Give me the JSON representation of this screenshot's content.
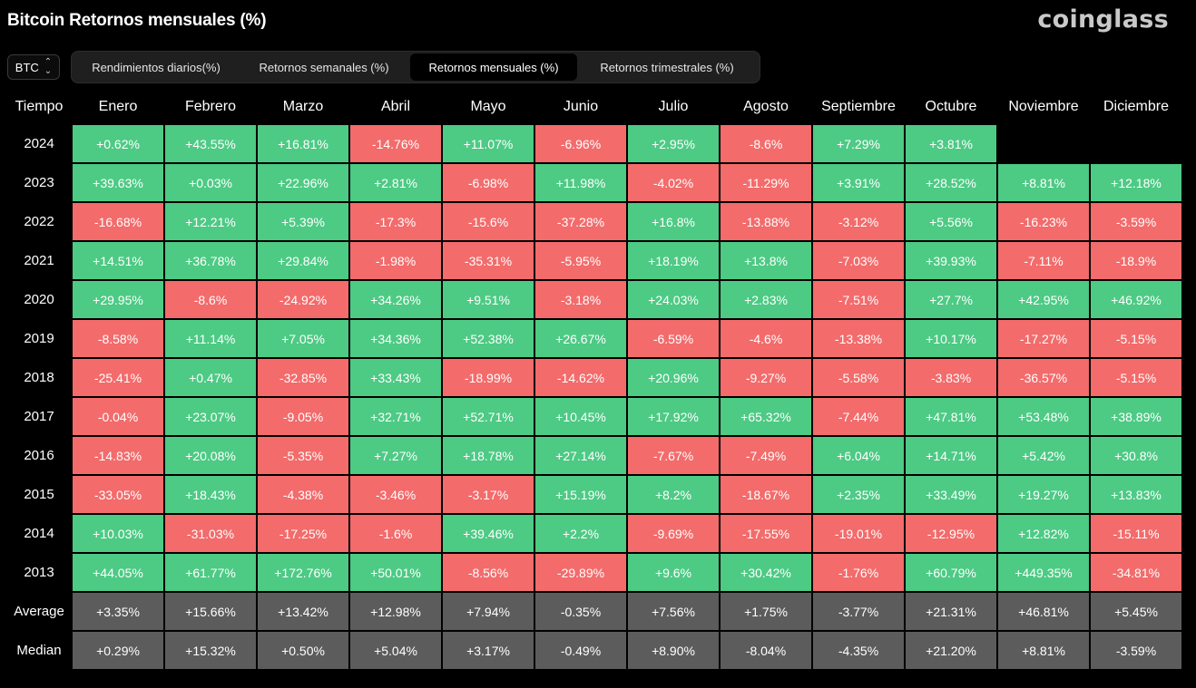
{
  "header": {
    "title": "Bitcoin Retornos mensuales (%)",
    "brand": "coinglass"
  },
  "colors": {
    "positive": "#4dca84",
    "negative": "#f36b6b",
    "stat": "#5c5c5c",
    "background": "#000000"
  },
  "coin_select": {
    "value": "BTC",
    "icon": "chevron-updown-icon"
  },
  "tabs": [
    {
      "label": "Rendimientos diarios(%)",
      "active": false
    },
    {
      "label": "Retornos semanales (%)",
      "active": false
    },
    {
      "label": "Retornos mensuales (%)",
      "active": true
    },
    {
      "label": "Retornos trimestrales (%)",
      "active": false
    }
  ],
  "table": {
    "headers": [
      "Tiempo",
      "Enero",
      "Febrero",
      "Marzo",
      "Abril",
      "Mayo",
      "Junio",
      "Julio",
      "Agosto",
      "Septiembre",
      "Octubre",
      "Noviembre",
      "Diciembre"
    ],
    "rows": [
      {
        "label": "2024",
        "values": [
          "+0.62%",
          "+43.55%",
          "+16.81%",
          "-14.76%",
          "+11.07%",
          "-6.96%",
          "+2.95%",
          "-8.6%",
          "+7.29%",
          "+3.81%",
          "",
          ""
        ]
      },
      {
        "label": "2023",
        "values": [
          "+39.63%",
          "+0.03%",
          "+22.96%",
          "+2.81%",
          "-6.98%",
          "+11.98%",
          "-4.02%",
          "-11.29%",
          "+3.91%",
          "+28.52%",
          "+8.81%",
          "+12.18%"
        ]
      },
      {
        "label": "2022",
        "values": [
          "-16.68%",
          "+12.21%",
          "+5.39%",
          "-17.3%",
          "-15.6%",
          "-37.28%",
          "+16.8%",
          "-13.88%",
          "-3.12%",
          "+5.56%",
          "-16.23%",
          "-3.59%"
        ]
      },
      {
        "label": "2021",
        "values": [
          "+14.51%",
          "+36.78%",
          "+29.84%",
          "-1.98%",
          "-35.31%",
          "-5.95%",
          "+18.19%",
          "+13.8%",
          "-7.03%",
          "+39.93%",
          "-7.11%",
          "-18.9%"
        ]
      },
      {
        "label": "2020",
        "values": [
          "+29.95%",
          "-8.6%",
          "-24.92%",
          "+34.26%",
          "+9.51%",
          "-3.18%",
          "+24.03%",
          "+2.83%",
          "-7.51%",
          "+27.7%",
          "+42.95%",
          "+46.92%"
        ]
      },
      {
        "label": "2019",
        "values": [
          "-8.58%",
          "+11.14%",
          "+7.05%",
          "+34.36%",
          "+52.38%",
          "+26.67%",
          "-6.59%",
          "-4.6%",
          "-13.38%",
          "+10.17%",
          "-17.27%",
          "-5.15%"
        ]
      },
      {
        "label": "2018",
        "values": [
          "-25.41%",
          "+0.47%",
          "-32.85%",
          "+33.43%",
          "-18.99%",
          "-14.62%",
          "+20.96%",
          "-9.27%",
          "-5.58%",
          "-3.83%",
          "-36.57%",
          "-5.15%"
        ]
      },
      {
        "label": "2017",
        "values": [
          "-0.04%",
          "+23.07%",
          "-9.05%",
          "+32.71%",
          "+52.71%",
          "+10.45%",
          "+17.92%",
          "+65.32%",
          "-7.44%",
          "+47.81%",
          "+53.48%",
          "+38.89%"
        ]
      },
      {
        "label": "2016",
        "values": [
          "-14.83%",
          "+20.08%",
          "-5.35%",
          "+7.27%",
          "+18.78%",
          "+27.14%",
          "-7.67%",
          "-7.49%",
          "+6.04%",
          "+14.71%",
          "+5.42%",
          "+30.8%"
        ]
      },
      {
        "label": "2015",
        "values": [
          "-33.05%",
          "+18.43%",
          "-4.38%",
          "-3.46%",
          "-3.17%",
          "+15.19%",
          "+8.2%",
          "-18.67%",
          "+2.35%",
          "+33.49%",
          "+19.27%",
          "+13.83%"
        ]
      },
      {
        "label": "2014",
        "values": [
          "+10.03%",
          "-31.03%",
          "-17.25%",
          "-1.6%",
          "+39.46%",
          "+2.2%",
          "-9.69%",
          "-17.55%",
          "-19.01%",
          "-12.95%",
          "+12.82%",
          "-15.11%"
        ]
      },
      {
        "label": "2013",
        "values": [
          "+44.05%",
          "+61.77%",
          "+172.76%",
          "+50.01%",
          "-8.56%",
          "-29.89%",
          "+9.6%",
          "+30.42%",
          "-1.76%",
          "+60.79%",
          "+449.35%",
          "-34.81%"
        ]
      }
    ],
    "stats": [
      {
        "label": "Average",
        "values": [
          "+3.35%",
          "+15.66%",
          "+13.42%",
          "+12.98%",
          "+7.94%",
          "-0.35%",
          "+7.56%",
          "+1.75%",
          "-3.77%",
          "+21.31%",
          "+46.81%",
          "+5.45%"
        ]
      },
      {
        "label": "Median",
        "values": [
          "+0.29%",
          "+15.32%",
          "+0.50%",
          "+5.04%",
          "+3.17%",
          "-0.49%",
          "+8.90%",
          "-8.04%",
          "-4.35%",
          "+21.20%",
          "+8.81%",
          "-3.59%"
        ]
      }
    ]
  }
}
